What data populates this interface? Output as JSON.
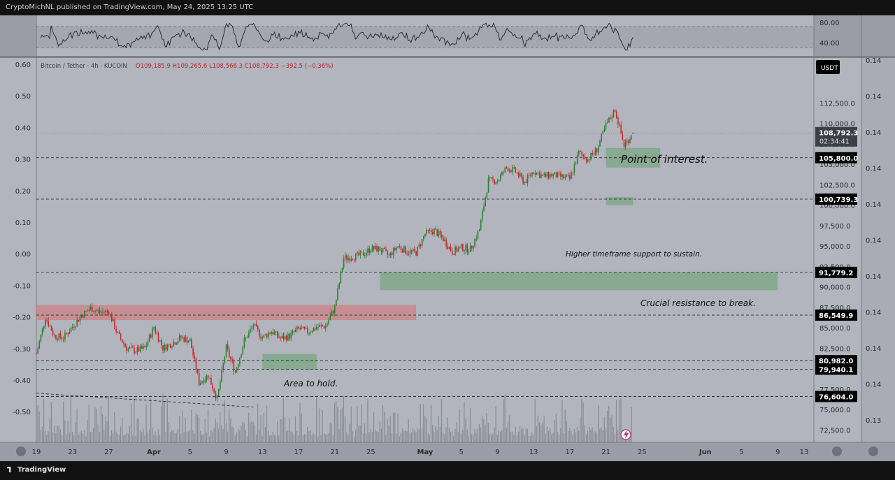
{
  "header": {
    "published_by": "CryptoMichNL published on TradingView.com, May 24, 2025 13:25 UTC"
  },
  "footer": {
    "brand": "TradingView"
  },
  "symbol_info": {
    "name": "Bitcoin / Tether · 4h · KUCOIN",
    "ohlc": "O109,185.9  H109,265.6  L108,566.3  C108,792.3  −392.5 (−0.36%)",
    "currency": "USDT",
    "countdown": "02:34:41"
  },
  "colors": {
    "bg": "#b2b5be",
    "panel": "#9598a1",
    "up": "#2e7d32",
    "down": "#c62828",
    "zone_green": "#7fa889",
    "zone_red": "#c8878c",
    "label_bg": "#000000"
  },
  "indicator_axis": [
    "80.00",
    "40.00"
  ],
  "left_axis_ticks": [
    "0.60",
    "0.50",
    "0.40",
    "0.30",
    "0.20",
    "0.10",
    "0.00",
    "-0.10",
    "-0.20",
    "-0.30",
    "-0.40",
    "-0.50"
  ],
  "far_right_axis_ticks": [
    "0.14",
    "0.14",
    "0.14",
    "0.14",
    "0.14",
    "0.14",
    "0.14",
    "0.14",
    "0.14",
    "0.14",
    "0.13"
  ],
  "annotations": {
    "point_of_interest": "Point of interest.",
    "htf_support": "Higher timeframe support to sustain.",
    "crucial_resistance": "Crucial resistance to break.",
    "area_hold": "Area to hold."
  },
  "chart_data": {
    "type": "candlestick",
    "title": "Bitcoin / Tether · 4h · KUCOIN",
    "y_ticks": [
      72500,
      75000,
      77500,
      80000,
      82500,
      85000,
      87500,
      90000,
      92500,
      95000,
      97500,
      100000,
      102500,
      105000,
      107500,
      110000,
      112500
    ],
    "y_tick_labels": [
      "72,500.0",
      "75,000.0",
      "77,500.0",
      "80,000.0",
      "82,500.0",
      "85,000.0",
      "87,500.0",
      "90,000.0",
      "92,500.0",
      "95,000.0",
      "97,500.0",
      "100,000.0",
      "102,500.0",
      "105,000.0",
      "107,500.0",
      "110,000.0",
      "112,500.0"
    ],
    "ylim": [
      71000,
      118000
    ],
    "x_ticks": [
      "19",
      "23",
      "27",
      "Apr",
      "5",
      "9",
      "13",
      "17",
      "21",
      "25",
      "May",
      "5",
      "9",
      "13",
      "17",
      "21",
      "25",
      "Jun",
      "5",
      "9",
      "13"
    ],
    "xlim": [
      "2025-03-19",
      "2025-06-13"
    ],
    "horizontal_levels": [
      {
        "value": 105800,
        "label": "105,800.0"
      },
      {
        "value": 100739.3,
        "label": "100,739.3"
      },
      {
        "value": 91779.2,
        "label": "91,779.2"
      },
      {
        "value": 86549.9,
        "label": "86,549.9"
      },
      {
        "value": 80982,
        "label": "80,982.0"
      },
      {
        "value": 79940.1,
        "label": "79,940.1"
      },
      {
        "value": 76604,
        "label": "76,604.0"
      }
    ],
    "last_price": {
      "value": 108792.3,
      "label": "108,792.3"
    },
    "zones": [
      {
        "type": "support",
        "from": "2025-05-21",
        "to": "2025-05-27",
        "low": 104600,
        "high": 107000
      },
      {
        "type": "support",
        "from": "2025-05-21",
        "to": "2025-05-24",
        "low": 100000,
        "high": 101000
      },
      {
        "type": "support",
        "from": "2025-04-26",
        "to": "2025-06-09",
        "low": 89600,
        "high": 91800
      },
      {
        "type": "resistance",
        "from": "2025-03-19",
        "to": "2025-04-30",
        "low": 85950,
        "high": 87800
      },
      {
        "type": "support",
        "from": "2025-04-13",
        "to": "2025-04-19",
        "low": 79900,
        "high": 81800
      }
    ],
    "close_path": [
      [
        "2025-03-19",
        81800
      ],
      [
        "2025-03-20",
        86300
      ],
      [
        "2025-03-21",
        84000
      ],
      [
        "2025-03-22",
        83800
      ],
      [
        "2025-03-24",
        86500
      ],
      [
        "2025-03-25",
        87400
      ],
      [
        "2025-03-26",
        86900
      ],
      [
        "2025-03-27",
        87000
      ],
      [
        "2025-03-28",
        84200
      ],
      [
        "2025-03-29",
        82500
      ],
      [
        "2025-03-30",
        82200
      ],
      [
        "2025-03-31",
        82500
      ],
      [
        "2025-04-01",
        85100
      ],
      [
        "2025-04-02",
        82500
      ],
      [
        "2025-04-03",
        83100
      ],
      [
        "2025-04-04",
        83800
      ],
      [
        "2025-04-05",
        83400
      ],
      [
        "2025-04-06",
        78300
      ],
      [
        "2025-04-07",
        79200
      ],
      [
        "2025-04-08",
        76300
      ],
      [
        "2025-04-09",
        82600
      ],
      [
        "2025-04-10",
        79600
      ],
      [
        "2025-04-11",
        83400
      ],
      [
        "2025-04-12",
        85300
      ],
      [
        "2025-04-13",
        83800
      ],
      [
        "2025-04-14",
        84600
      ],
      [
        "2025-04-15",
        83700
      ],
      [
        "2025-04-16",
        84000
      ],
      [
        "2025-04-17",
        84900
      ],
      [
        "2025-04-18",
        84500
      ],
      [
        "2025-04-19",
        85100
      ],
      [
        "2025-04-20",
        85200
      ],
      [
        "2025-04-21",
        87500
      ],
      [
        "2025-04-22",
        93500
      ],
      [
        "2025-04-23",
        93700
      ],
      [
        "2025-04-24",
        93900
      ],
      [
        "2025-04-25",
        94700
      ],
      [
        "2025-04-26",
        94600
      ],
      [
        "2025-04-27",
        93800
      ],
      [
        "2025-04-28",
        95000
      ],
      [
        "2025-04-29",
        94300
      ],
      [
        "2025-04-30",
        94200
      ],
      [
        "2025-05-01",
        96500
      ],
      [
        "2025-05-02",
        96900
      ],
      [
        "2025-05-03",
        95900
      ],
      [
        "2025-05-04",
        94300
      ],
      [
        "2025-05-05",
        94800
      ],
      [
        "2025-05-06",
        94600
      ],
      [
        "2025-05-07",
        97000
      ],
      [
        "2025-05-08",
        103000
      ],
      [
        "2025-05-09",
        103000
      ],
      [
        "2025-05-10",
        104600
      ],
      [
        "2025-05-11",
        104100
      ],
      [
        "2025-05-12",
        102800
      ],
      [
        "2025-05-13",
        104200
      ],
      [
        "2025-05-14",
        103500
      ],
      [
        "2025-05-15",
        103700
      ],
      [
        "2025-05-16",
        103500
      ],
      [
        "2025-05-17",
        103200
      ],
      [
        "2025-05-18",
        106400
      ],
      [
        "2025-05-19",
        105600
      ],
      [
        "2025-05-20",
        106800
      ],
      [
        "2025-05-21",
        109700
      ],
      [
        "2025-05-22",
        111700
      ],
      [
        "2025-05-23",
        107300
      ],
      [
        "2025-05-24",
        108792.3
      ]
    ]
  }
}
